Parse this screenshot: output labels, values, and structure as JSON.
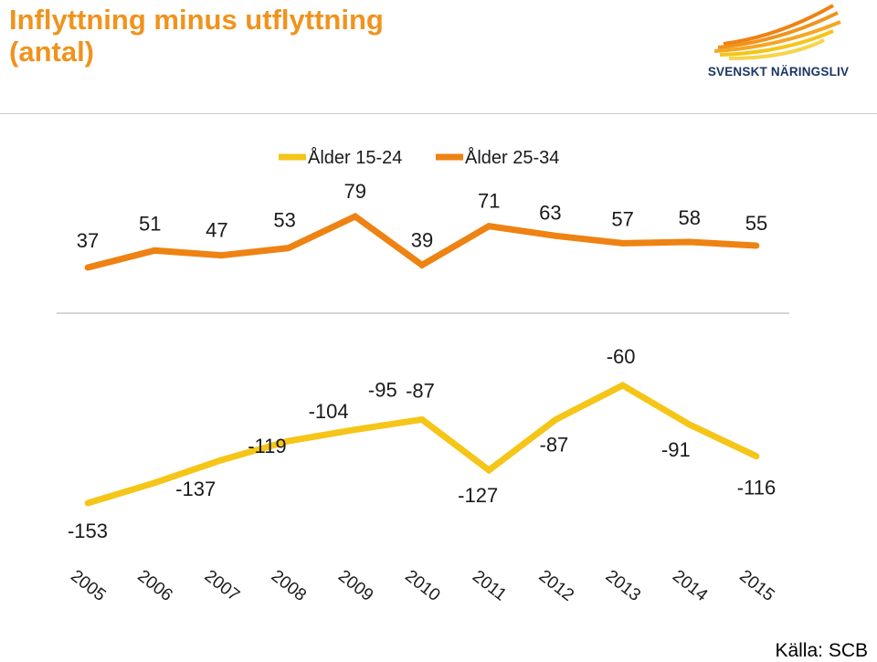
{
  "header": {
    "title_line1": "Inflyttning minus utflyttning",
    "title_line2": "(antal)"
  },
  "logo": {
    "text": "SVENSKT NÄRINGSLIV",
    "icon": "feather-rays-logo"
  },
  "source": "Källa: SCB",
  "colors": {
    "title": "#f0931d",
    "series_15_24": "#f5c518",
    "series_25_34": "#ee8212",
    "logo_text": "#1c3566"
  },
  "chart_data": {
    "type": "line",
    "x": [
      "2005",
      "2006",
      "2007",
      "2008",
      "2009",
      "2010",
      "2011",
      "2012",
      "2013",
      "2014",
      "2015"
    ],
    "series": [
      {
        "name": "Ålder 15-24",
        "values": [
          -153,
          -137,
          -119,
          -104,
          -95,
          -87,
          -127,
          -87,
          -60,
          -91,
          -116
        ]
      },
      {
        "name": "Ålder 25-34",
        "values": [
          37,
          51,
          47,
          53,
          79,
          39,
          71,
          63,
          57,
          58,
          55
        ]
      }
    ],
    "legend_position": "top-center",
    "grid": false,
    "data_labels": true
  }
}
